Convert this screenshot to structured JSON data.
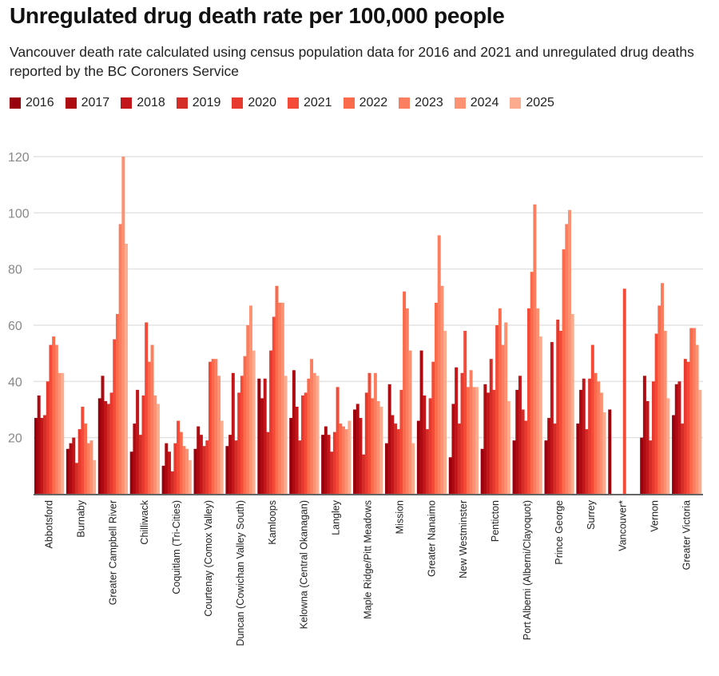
{
  "chart_data": {
    "type": "bar",
    "title": "Unregulated drug death rate per 100,000 people",
    "subtitle": "Vancouver death rate calculated using census population data for 2016 and 2021 and unregulated drug deaths reported by the BC Coroners Service",
    "xlabel": "",
    "ylabel": "",
    "ylim": [
      0,
      120
    ],
    "yticks": [
      20,
      40,
      60,
      80,
      100,
      120
    ],
    "grid": true,
    "legend_position": "top-left",
    "categories": [
      "Abbotsford",
      "Burnaby",
      "Greater Campbell River",
      "Chilliwack",
      "Coquitlam (Tri-Cities)",
      "Courtenay (Comox Valley)",
      "Duncan (Cowichan Valley South)",
      "Kamloops",
      "Kelowna (Central Okanagan)",
      "Langley",
      "Maple Ridge/Pitt Meadows",
      "Mission",
      "Greater Nanaimo",
      "New Westminster",
      "Penticton",
      "Port Alberni (Alberni/Clayoquot)",
      "Prince George",
      "Surrey",
      "Vancouver*",
      "Vernon",
      "Greater Victoria"
    ],
    "series": [
      {
        "name": "2016",
        "color": "#99000d",
        "values": [
          27,
          16,
          34,
          15,
          10,
          16,
          17,
          41,
          27,
          21,
          30,
          18,
          26,
          13,
          16,
          19,
          19,
          25,
          30,
          20,
          28
        ]
      },
      {
        "name": "2017",
        "color": "#ad0a12",
        "values": [
          35,
          18,
          42,
          25,
          18,
          24,
          21,
          34,
          44,
          24,
          32,
          39,
          51,
          32,
          39,
          37,
          27,
          37,
          null,
          42,
          39
        ]
      },
      {
        "name": "2018",
        "color": "#c3161b",
        "values": [
          27,
          20,
          33,
          37,
          15,
          21,
          43,
          41,
          31,
          21,
          27,
          28,
          35,
          45,
          36,
          42,
          54,
          41,
          null,
          33,
          40
        ]
      },
      {
        "name": "2019",
        "color": "#d42d27",
        "values": [
          28,
          11,
          32,
          21,
          8,
          17,
          19,
          22,
          19,
          15,
          14,
          25,
          23,
          25,
          48,
          30,
          25,
          23,
          null,
          19,
          25
        ]
      },
      {
        "name": "2020",
        "color": "#e8392e",
        "values": [
          40,
          23,
          36,
          35,
          18,
          19,
          36,
          51,
          35,
          22,
          36,
          23,
          34,
          43,
          37,
          26,
          62,
          41,
          null,
          40,
          48
        ]
      },
      {
        "name": "2021",
        "color": "#f44a37",
        "values": [
          53,
          31,
          55,
          61,
          26,
          47,
          42,
          63,
          36,
          38,
          43,
          37,
          47,
          58,
          60,
          66,
          58,
          53,
          73,
          57,
          47
        ]
      },
      {
        "name": "2022",
        "color": "#fb6a4a",
        "values": [
          56,
          25,
          64,
          47,
          22,
          48,
          49,
          74,
          41,
          25,
          34,
          72,
          68,
          38,
          66,
          79,
          87,
          43,
          null,
          67,
          59
        ]
      },
      {
        "name": "2023",
        "color": "#fc7e60",
        "values": [
          53,
          18,
          96,
          53,
          17,
          48,
          60,
          68,
          48,
          24,
          43,
          66,
          92,
          44,
          53,
          103,
          96,
          40,
          null,
          75,
          59
        ]
      },
      {
        "name": "2024",
        "color": "#fc9272",
        "values": [
          43,
          19,
          120,
          35,
          16,
          42,
          67,
          68,
          43,
          23,
          33,
          51,
          74,
          38,
          61,
          66,
          101,
          36,
          null,
          58,
          53
        ]
      },
      {
        "name": "2025",
        "color": "#fcab8f",
        "values": [
          43,
          12,
          89,
          32,
          12,
          26,
          51,
          42,
          42,
          26,
          31,
          18,
          58,
          38,
          33,
          56,
          64,
          29,
          null,
          34,
          37
        ]
      }
    ]
  }
}
